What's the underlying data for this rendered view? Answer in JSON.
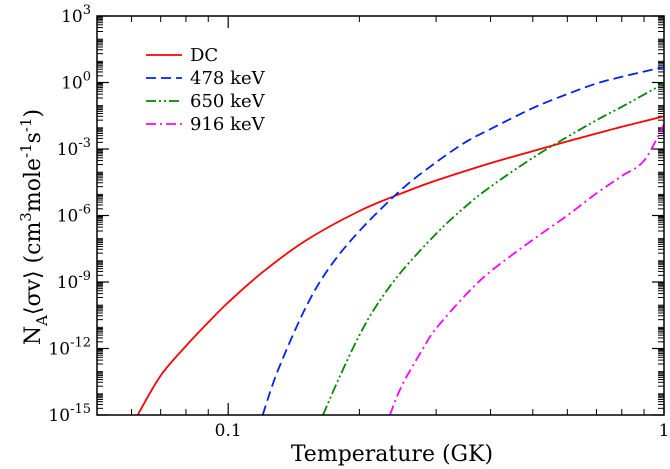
{
  "chart_data": {
    "type": "line",
    "xscale": "log",
    "yscale": "log",
    "xlim": [
      0.05,
      1
    ],
    "ylim": [
      1e-15,
      1000
    ],
    "xlabel": "Temperature (GK)",
    "ylabel": {
      "prefix": "N",
      "prefix_sub": "A",
      "body": "⟨σv⟩ (cm",
      "sup1": "3",
      "mid1": "mole",
      "sup2": "-1",
      "mid2": "s",
      "sup3": "-1",
      "suffix": ")"
    },
    "x_ticks": [
      {
        "value": 0.1,
        "label": "0.1"
      },
      {
        "value": 1,
        "label": "1"
      }
    ],
    "y_ticks": [
      {
        "value": 1e-15,
        "base": "10",
        "exp": "-15"
      },
      {
        "value": 1e-12,
        "base": "10",
        "exp": "-12"
      },
      {
        "value": 1e-09,
        "base": "10",
        "exp": "-9"
      },
      {
        "value": 1e-06,
        "base": "10",
        "exp": "-6"
      },
      {
        "value": 0.001,
        "base": "10",
        "exp": "-3"
      },
      {
        "value": 1,
        "base": "10",
        "exp": "0"
      },
      {
        "value": 1000,
        "base": "10",
        "exp": "3"
      }
    ],
    "legend_position": "top-left",
    "series": [
      {
        "name": "DC",
        "color": "#ff0000",
        "dash": "solid",
        "x": [
          0.062,
          0.07,
          0.08,
          0.09,
          0.1,
          0.12,
          0.15,
          0.2,
          0.25,
          0.3,
          0.4,
          0.5,
          0.6,
          0.7,
          0.8,
          1.0
        ],
        "y": [
          1e-15,
          6e-14,
          1.3e-12,
          1.5e-11,
          1.2e-10,
          2.8e-09,
          7e-08,
          1.6e-06,
          1e-05,
          3.8e-05,
          0.00023,
          0.0008,
          0.0022,
          0.005,
          0.01,
          0.03
        ]
      },
      {
        "name": "478 keV",
        "color": "#0022ee",
        "dash": "dash",
        "x": [
          0.12,
          0.13,
          0.15,
          0.17,
          0.2,
          0.25,
          0.3,
          0.35,
          0.4,
          0.5,
          0.6,
          0.7,
          0.8,
          1.0
        ],
        "y": [
          1e-15,
          1e-13,
          6e-11,
          4e-09,
          2e-07,
          1.5e-05,
          0.00025,
          0.002,
          0.008,
          0.07,
          0.3,
          0.9,
          1.8,
          5
        ]
      },
      {
        "name": "650 keV",
        "color": "#008800",
        "dash": "dashdot2",
        "x": [
          0.165,
          0.18,
          0.2,
          0.22,
          0.25,
          0.3,
          0.35,
          0.4,
          0.5,
          0.6,
          0.7,
          0.8,
          1.0
        ],
        "y": [
          1e-15,
          5e-14,
          4e-12,
          1e-10,
          3e-09,
          1.5e-07,
          2.5e-06,
          2e-05,
          0.0004,
          0.0035,
          0.02,
          0.08,
          0.9
        ]
      },
      {
        "name": "916 keV",
        "color": "#ff00ff",
        "dash": "dashdot",
        "x": [
          0.235,
          0.25,
          0.28,
          0.3,
          0.35,
          0.4,
          0.5,
          0.6,
          0.7,
          0.8,
          0.9,
          1.0
        ],
        "y": [
          1e-15,
          2e-14,
          1e-12,
          8e-12,
          2.5e-10,
          3e-09,
          8e-08,
          1e-06,
          1e-05,
          6e-05,
          0.0003,
          0.013
        ]
      }
    ]
  }
}
